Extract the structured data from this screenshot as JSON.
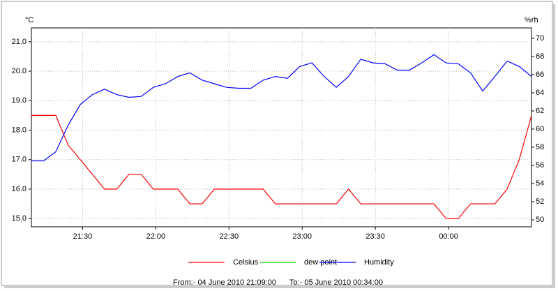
{
  "chart_data": {
    "type": "line",
    "y_label": "°C",
    "y2_label": "%rh",
    "x": [
      "21:09",
      "21:14",
      "21:19",
      "21:24",
      "21:29",
      "21:34",
      "21:39",
      "21:44",
      "21:49",
      "21:54",
      "21:59",
      "22:04",
      "22:09",
      "22:14",
      "22:19",
      "22:24",
      "22:29",
      "22:34",
      "22:39",
      "22:44",
      "22:49",
      "22:54",
      "22:59",
      "23:04",
      "23:09",
      "23:14",
      "23:19",
      "23:24",
      "23:29",
      "23:34",
      "23:39",
      "23:44",
      "23:49",
      "23:54",
      "23:59",
      "00:04",
      "00:09",
      "00:14",
      "00:19",
      "00:24",
      "00:29",
      "00:34"
    ],
    "xlim": [
      "21:09",
      "00:34"
    ],
    "xticks": [
      "21:30",
      "22:00",
      "22:30",
      "23:00",
      "23:30",
      "00:00"
    ],
    "ylim": [
      14.72,
      21.47
    ],
    "yticks": [
      {
        "value": 15,
        "label": "15.0"
      },
      {
        "value": 16,
        "label": "16.0"
      },
      {
        "value": 17,
        "label": "17.0"
      },
      {
        "value": 18,
        "label": "18.0"
      },
      {
        "value": 19,
        "label": "19.0"
      },
      {
        "value": 20,
        "label": "20.0"
      },
      {
        "value": 21,
        "label": "21.0"
      }
    ],
    "y2lim": [
      49.23,
      71.15
    ],
    "y2ticks": [
      50,
      52,
      54,
      56,
      58,
      60,
      62,
      64,
      66,
      68,
      70
    ],
    "grid": true,
    "series": [
      {
        "name": "Celsius",
        "color": "#ff0000",
        "values": [
          18.5,
          18.5,
          18.5,
          17.5,
          17.0,
          16.5,
          16.0,
          16.0,
          16.5,
          16.5,
          16.0,
          16.0,
          16.0,
          15.5,
          15.5,
          16.0,
          16.0,
          16.0,
          16.0,
          16.0,
          15.5,
          15.5,
          15.5,
          15.5,
          15.5,
          15.5,
          16.0,
          15.5,
          15.5,
          15.5,
          15.5,
          15.5,
          15.5,
          15.5,
          15.0,
          15.0,
          15.5,
          15.5,
          15.5,
          16.0,
          17.0,
          18.5
        ]
      },
      {
        "name": "dew point",
        "color": "#00dd00",
        "values": [
          null,
          null,
          null,
          null,
          null,
          null,
          null,
          null,
          null,
          null,
          null,
          null,
          null,
          null,
          null,
          null,
          null,
          null,
          null,
          null,
          null,
          null,
          null,
          null,
          null,
          null,
          null,
          null,
          null,
          null,
          null,
          null,
          null,
          null,
          null,
          null,
          null,
          null,
          null,
          null,
          null,
          null
        ]
      },
      {
        "name": "Humidity",
        "color": "#0000ff",
        "axis": "y2",
        "values": [
          56.5,
          56.5,
          57.5,
          60.4,
          62.7,
          63.8,
          64.4,
          63.8,
          63.5,
          63.6,
          64.6,
          65.0,
          65.8,
          66.2,
          65.4,
          65.0,
          64.6,
          64.5,
          64.5,
          65.4,
          65.8,
          65.6,
          66.9,
          67.3,
          65.8,
          64.6,
          65.8,
          67.7,
          67.3,
          67.2,
          66.5,
          66.5,
          67.3,
          68.2,
          67.3,
          67.2,
          66.2,
          64.2,
          65.8,
          67.5,
          66.9,
          65.8
        ]
      }
    ],
    "footer_from": "From:-  04 June 2010 21:09:00",
    "footer_to": "To:-  05 June 2010 00:34:00"
  }
}
